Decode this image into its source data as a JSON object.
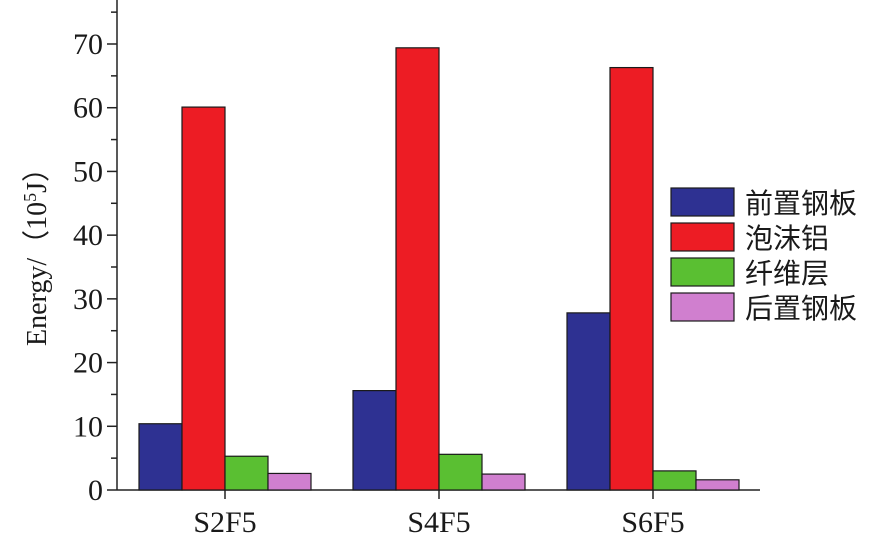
{
  "chart_data": {
    "type": "bar",
    "categories": [
      "S2F5",
      "S4F5",
      "S6F5"
    ],
    "series": [
      {
        "name": "前置钢板",
        "color": "#2e3192",
        "values": [
          10.4,
          15.6,
          27.8
        ]
      },
      {
        "name": "泡沫铝",
        "color": "#ed1c24",
        "values": [
          60.1,
          69.4,
          66.3
        ]
      },
      {
        "name": "纤维层",
        "color": "#5abf32",
        "values": [
          5.3,
          5.6,
          3.0
        ]
      },
      {
        "name": "后置钢板",
        "color": "#d07fcf",
        "values": [
          2.6,
          2.5,
          1.6
        ]
      }
    ],
    "ylabel_prefix": "Energy/（10",
    "ylabel_sup": "5",
    "ylabel_suffix": "J）",
    "ylim": [
      0,
      75
    ],
    "yticks": [
      0,
      10,
      20,
      30,
      40,
      50,
      60,
      70
    ],
    "grid": false,
    "legend_position": "right"
  }
}
